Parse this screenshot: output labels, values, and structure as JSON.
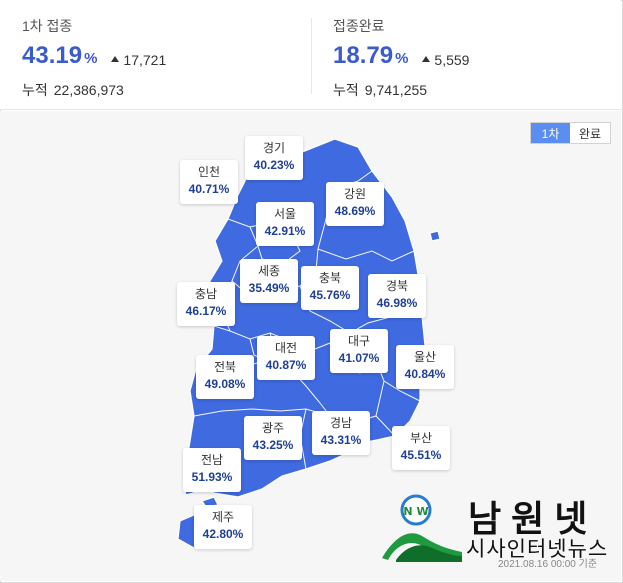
{
  "summary": {
    "first_dose": {
      "label": "1차 접종",
      "percent": "43.19",
      "percent_unit": "%",
      "delta": "17,721",
      "cumulative_label": "누적",
      "cumulative_value": "22,386,973"
    },
    "completed": {
      "label": "접종완료",
      "percent": "18.79",
      "percent_unit": "%",
      "delta": "5,559",
      "cumulative_label": "누적",
      "cumulative_value": "9,741,255"
    }
  },
  "toggle": {
    "first": "1차",
    "completed": "완료",
    "selected": "1차"
  },
  "colors": {
    "map_fill": "#3f6ae0",
    "region_border": "#ffffff",
    "accent": "#3b5bcc",
    "toggle_active": "#5a8ef0"
  },
  "regions": {
    "incheon": {
      "name": "인천",
      "pct": "40.71%"
    },
    "gyeonggi": {
      "name": "경기",
      "pct": "40.23%"
    },
    "gangwon": {
      "name": "강원",
      "pct": "48.69%"
    },
    "seoul": {
      "name": "서울",
      "pct": "42.91%"
    },
    "sejong": {
      "name": "세종",
      "pct": "35.49%"
    },
    "chungbuk": {
      "name": "충북",
      "pct": "45.76%"
    },
    "gyeongbuk": {
      "name": "경북",
      "pct": "46.98%"
    },
    "chungnam": {
      "name": "충남",
      "pct": "46.17%"
    },
    "daejeon": {
      "name": "대전",
      "pct": "40.87%"
    },
    "daegu": {
      "name": "대구",
      "pct": "41.07%"
    },
    "jeonbuk": {
      "name": "전북",
      "pct": "49.08%"
    },
    "ulsan": {
      "name": "울산",
      "pct": "40.84%"
    },
    "gwangju": {
      "name": "광주",
      "pct": "43.25%"
    },
    "gyeongnam": {
      "name": "경남",
      "pct": "43.31%"
    },
    "busan": {
      "name": "부산",
      "pct": "45.51%"
    },
    "jeonnam": {
      "name": "전남",
      "pct": "51.93%"
    },
    "jeju": {
      "name": "제주",
      "pct": "42.80%"
    }
  },
  "watermark": {
    "title": "남원넷",
    "subtitle": "시사인터넷뉴스",
    "emblem_text": "N W"
  },
  "timestamp": "2021.08.16 00:00 기준"
}
